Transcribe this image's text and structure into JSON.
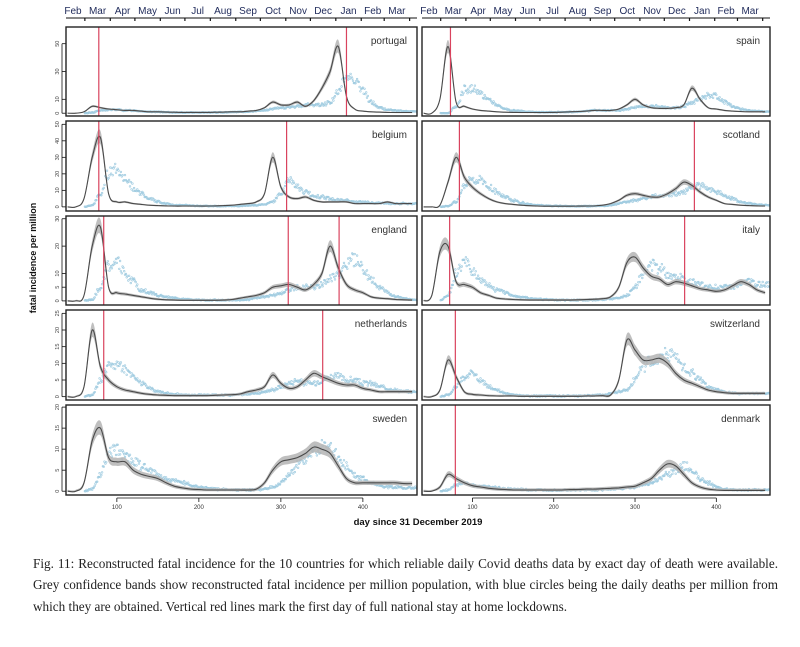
{
  "chart_data": {
    "type": "line",
    "xlabel": "day since 31 December 2019",
    "ylabel": "fatal incidence per million",
    "xlim": [
      38,
      466
    ],
    "x_ticks": [
      100,
      200,
      300,
      400
    ],
    "top_axis_months": [
      "Feb",
      "Mar",
      "Apr",
      "May",
      "Jun",
      "Jul",
      "Aug",
      "Sep",
      "Oct",
      "Nov",
      "Dec",
      "Jan",
      "Feb",
      "Mar"
    ],
    "colors": {
      "band": "#b4b4b4",
      "line": "#4a4a4a",
      "points": "#9fcbe0",
      "lockdown": "#d9435e"
    },
    "x": [
      40,
      50,
      60,
      70,
      80,
      90,
      100,
      110,
      120,
      130,
      140,
      150,
      160,
      170,
      180,
      190,
      200,
      210,
      220,
      230,
      240,
      250,
      260,
      270,
      280,
      290,
      300,
      310,
      320,
      330,
      340,
      350,
      360,
      370,
      380,
      390,
      400,
      410,
      420,
      430,
      440,
      450,
      460
    ],
    "rows": [
      {
        "ylim": [
          -2,
          62
        ],
        "yticks": [
          0,
          10,
          30,
          50
        ]
      },
      {
        "ylim": [
          -2.5,
          52
        ],
        "yticks": [
          0,
          10,
          20,
          30,
          40,
          50
        ]
      },
      {
        "ylim": [
          -1.5,
          31
        ],
        "yticks": [
          0,
          5,
          10,
          20,
          30
        ]
      },
      {
        "ylim": [
          -1,
          26
        ],
        "yticks": [
          0,
          5,
          10,
          15,
          20,
          25
        ]
      },
      {
        "ylim": [
          -0.9,
          20.5
        ],
        "yticks": [
          0,
          5,
          10,
          15,
          20
        ]
      }
    ],
    "panels": [
      {
        "country": "portugal",
        "row": 0,
        "col": 0,
        "lockdown_days": [
          78,
          380
        ],
        "reconstructed": [
          0,
          0,
          1,
          5,
          4,
          3,
          2.5,
          2,
          2,
          1.5,
          1,
          1,
          0.8,
          0.7,
          0.6,
          0.6,
          0.6,
          0.6,
          0.7,
          0.8,
          1,
          1,
          1.5,
          2,
          4,
          8,
          6,
          6,
          8,
          5,
          9,
          18,
          30,
          48,
          12,
          3,
          1.5,
          1,
          0.8,
          0.6,
          0.5,
          0.5,
          0.5
        ],
        "daily_deaths": [
          null,
          null,
          0,
          0.5,
          2,
          2.5,
          2.5,
          2,
          2,
          1.5,
          1,
          1,
          0.7,
          0.5,
          0.5,
          0.5,
          0.5,
          0.5,
          0.5,
          0.6,
          0.8,
          1,
          1,
          1.5,
          2,
          3,
          4,
          4,
          5,
          6,
          6,
          6,
          8,
          15,
          27,
          25,
          16,
          8,
          4,
          2.5,
          2,
          1.5,
          1.2
        ]
      },
      {
        "country": "spain",
        "row": 0,
        "col": 1,
        "lockdown_days": [
          73
        ],
        "reconstructed": [
          0,
          0,
          10,
          48,
          8,
          5,
          3,
          2,
          1.5,
          1,
          0.7,
          0.6,
          0.5,
          0.5,
          0.5,
          0.5,
          0.6,
          0.7,
          1,
          1.2,
          1.5,
          2,
          2,
          2,
          3,
          6,
          10,
          6,
          4,
          3.5,
          3.5,
          4,
          6,
          18,
          10,
          4,
          3,
          2,
          1.5,
          1.2,
          1,
          1,
          1
        ],
        "daily_deaths": [
          null,
          null,
          0,
          0,
          5,
          17,
          18,
          14,
          10,
          6,
          3,
          2,
          1.5,
          1,
          0.8,
          0.7,
          0.7,
          0.8,
          1,
          1,
          1.5,
          2,
          2,
          2,
          2,
          3,
          4,
          5,
          5,
          5,
          4,
          4,
          5,
          8,
          10,
          13,
          12,
          8,
          5,
          3,
          2,
          1.5,
          1.2
        ]
      },
      {
        "country": "belgium",
        "row": 1,
        "col": 0,
        "lockdown_days": [
          78,
          307
        ],
        "reconstructed": [
          0,
          0,
          5,
          30,
          42,
          8,
          3,
          3,
          2,
          1.5,
          1,
          0.8,
          0.6,
          0.5,
          0.5,
          0.5,
          0.5,
          0.5,
          0.6,
          0.8,
          1,
          1.5,
          2,
          3,
          8,
          30,
          12,
          6,
          5,
          6,
          4,
          3,
          3,
          3,
          3,
          2,
          2,
          2,
          2,
          3,
          2,
          2,
          2
        ],
        "daily_deaths": [
          null,
          null,
          0,
          1,
          8,
          20,
          24,
          18,
          12,
          8,
          5,
          3,
          2,
          1,
          1,
          0.8,
          0.6,
          0.5,
          0.5,
          0.5,
          0.5,
          0.6,
          0.8,
          1,
          1.5,
          3,
          8,
          16,
          12,
          9,
          7,
          6,
          5,
          4,
          4,
          3,
          3,
          2.5,
          2.5,
          2,
          2,
          2,
          2
        ]
      },
      {
        "country": "scotland",
        "row": 1,
        "col": 1,
        "lockdown_days": [
          84,
          373
        ],
        "reconstructed": [
          0,
          0,
          1,
          15,
          30,
          18,
          12,
          8,
          5,
          3,
          2,
          1.5,
          1,
          0.7,
          0.5,
          0.4,
          0.4,
          0.4,
          0.4,
          0.5,
          0.5,
          0.6,
          1,
          2,
          4,
          7,
          8,
          7,
          6,
          6,
          8,
          11,
          15,
          13,
          9,
          6,
          4,
          2,
          1.5,
          1,
          0.8,
          0.6,
          0.5
        ],
        "daily_deaths": [
          null,
          null,
          0,
          0.5,
          3,
          12,
          17,
          16,
          12,
          9,
          6,
          4,
          2.5,
          1.5,
          1,
          0.7,
          0.6,
          0.5,
          0.4,
          0.4,
          0.4,
          0.5,
          0.6,
          1,
          2,
          3,
          4,
          5,
          6,
          7,
          7,
          8,
          9,
          12,
          13,
          11,
          9,
          7,
          5,
          3,
          2,
          1.5,
          1
        ]
      },
      {
        "country": "england",
        "row": 2,
        "col": 0,
        "lockdown_days": [
          84,
          309,
          371
        ],
        "reconstructed": [
          0,
          0,
          2,
          20,
          27,
          5,
          3,
          2.5,
          2,
          1.5,
          1,
          0.6,
          0.4,
          0.3,
          0.2,
          0.2,
          0.2,
          0.2,
          0.2,
          0.3,
          0.5,
          1,
          1.5,
          2,
          3,
          5,
          5.5,
          6,
          5,
          4,
          6,
          10,
          20,
          12,
          6,
          4,
          3,
          1.5,
          1,
          0.8,
          0.5,
          0.4,
          0.3
        ],
        "daily_deaths": [
          null,
          null,
          0,
          0.5,
          5,
          13,
          14,
          10,
          7,
          4,
          3,
          2,
          1.5,
          1,
          0.6,
          0.5,
          0.4,
          0.3,
          0.3,
          0.3,
          0.3,
          0.4,
          0.5,
          1,
          1.5,
          2,
          3,
          4,
          5,
          5,
          5,
          6,
          8,
          10,
          14,
          15,
          12,
          8,
          5,
          3,
          1.5,
          1,
          0.5
        ]
      },
      {
        "country": "italy",
        "row": 2,
        "col": 1,
        "lockdown_days": [
          72,
          361
        ],
        "reconstructed": [
          0,
          2,
          18,
          20,
          7,
          6,
          5,
          3,
          2,
          1,
          0.7,
          0.5,
          0.4,
          0.3,
          0.3,
          0.3,
          0.3,
          0.3,
          0.3,
          0.4,
          0.5,
          0.6,
          0.8,
          1.5,
          5,
          14,
          16,
          12,
          9,
          8,
          6,
          7,
          6.5,
          5.5,
          4.5,
          4,
          3.5,
          4,
          5.5,
          7,
          6,
          4,
          3
        ],
        "daily_deaths": [
          null,
          null,
          0,
          2,
          10,
          14,
          11,
          8,
          6,
          4,
          3,
          2,
          1.5,
          1,
          0.7,
          0.5,
          0.4,
          0.3,
          0.3,
          0.3,
          0.3,
          0.4,
          0.5,
          0.8,
          1,
          2,
          5,
          10,
          13,
          12,
          10,
          9,
          8,
          7,
          6,
          5,
          5,
          5,
          5,
          6,
          7,
          6,
          6
        ]
      },
      {
        "country": "netherlands",
        "row": 3,
        "col": 0,
        "lockdown_days": [
          84,
          351
        ],
        "reconstructed": [
          0,
          0,
          3,
          20,
          9,
          5,
          3,
          2,
          1.5,
          1,
          0.7,
          0.5,
          0.4,
          0.3,
          0.3,
          0.3,
          0.3,
          0.3,
          0.4,
          0.5,
          0.6,
          0.8,
          1.5,
          2,
          3,
          6.5,
          4,
          2.5,
          3,
          5,
          7,
          6,
          5,
          4,
          3.5,
          3.5,
          2.5,
          2,
          1.5,
          1.5,
          1.5,
          1.5,
          1.5
        ],
        "daily_deaths": [
          null,
          null,
          0,
          0.5,
          5,
          9,
          10,
          8,
          6,
          4,
          2.5,
          1.5,
          1,
          0.8,
          0.6,
          0.5,
          0.5,
          0.5,
          0.5,
          0.5,
          0.5,
          0.6,
          0.8,
          1,
          1.5,
          2,
          3,
          4,
          5,
          4,
          4,
          5,
          6,
          6,
          5,
          5,
          4,
          4,
          3,
          2.5,
          2,
          1.5,
          1.5
        ]
      },
      {
        "country": "switzerland",
        "row": 3,
        "col": 1,
        "lockdown_days": [
          79
        ],
        "reconstructed": [
          0,
          0,
          2,
          11,
          6,
          1.5,
          0.7,
          0.5,
          0.3,
          0.2,
          0.2,
          0.2,
          0.1,
          0.1,
          0.1,
          0.1,
          0.1,
          0.1,
          0.1,
          0.1,
          0.2,
          0.2,
          0.3,
          0.5,
          5,
          17,
          14,
          11,
          11,
          11.5,
          10,
          7,
          5,
          4,
          3,
          2,
          1.5,
          1.2,
          1,
          1,
          1,
          1,
          1
        ],
        "daily_deaths": [
          null,
          null,
          0,
          0.5,
          3,
          6,
          7,
          5,
          3,
          2,
          1,
          0.5,
          0.3,
          0.2,
          0.2,
          0.2,
          0.2,
          0.2,
          0.2,
          0.2,
          0.3,
          0.4,
          0.5,
          1,
          1.5,
          2,
          5,
          9,
          11,
          12,
          13,
          12,
          9,
          7,
          5,
          3,
          2,
          1.5,
          1,
          1,
          1,
          1,
          1
        ]
      },
      {
        "country": "sweden",
        "row": 4,
        "col": 0,
        "lockdown_days": [],
        "reconstructed": [
          0,
          0,
          2,
          12,
          15,
          8,
          7,
          7,
          5,
          4,
          3.5,
          3,
          2,
          1.2,
          0.8,
          0.5,
          0.4,
          0.3,
          0.3,
          0.3,
          0.3,
          0.3,
          0.3,
          0.5,
          2,
          5,
          7,
          7.5,
          8,
          9,
          10.5,
          10,
          9,
          6,
          3,
          2,
          2,
          2,
          2,
          2,
          2,
          1.8,
          1.8
        ],
        "daily_deaths": [
          null,
          null,
          0,
          0.5,
          4,
          9,
          10,
          8,
          7,
          6,
          5,
          4,
          3,
          2.5,
          2,
          1.5,
          1,
          0.8,
          0.5,
          0.4,
          0.3,
          0.3,
          0.3,
          0.3,
          0.5,
          1,
          2,
          4,
          6,
          8,
          9,
          11,
          10,
          8,
          6,
          4,
          3,
          2,
          1.5,
          1,
          1,
          0.8,
          0.8
        ]
      },
      {
        "country": "denmark",
        "row": 4,
        "col": 1,
        "lockdown_days": [
          79
        ],
        "reconstructed": [
          0,
          0,
          1,
          4,
          3,
          2,
          1.3,
          1,
          0.7,
          0.5,
          0.4,
          0.3,
          0.3,
          0.3,
          0.3,
          0.3,
          0.3,
          0.3,
          0.4,
          0.4,
          0.5,
          0.5,
          0.6,
          0.7,
          0.8,
          1,
          1.2,
          2,
          3,
          5,
          6.5,
          6,
          4,
          2,
          1,
          0.5,
          0.3,
          0.2,
          0.2,
          0.2,
          0.2,
          0.2,
          0.2
        ],
        "daily_deaths": [
          null,
          null,
          0,
          0.3,
          1.5,
          2,
          1.5,
          1.2,
          1,
          0.8,
          0.6,
          0.5,
          0.4,
          0.3,
          0.3,
          0.3,
          0.3,
          0.3,
          0.3,
          0.3,
          0.3,
          0.3,
          0.4,
          0.5,
          0.6,
          0.8,
          1,
          1.5,
          2,
          3,
          4,
          5,
          6,
          5,
          3,
          2,
          1,
          0.5,
          0.4,
          0.3,
          0.3,
          0.3,
          0.3
        ]
      }
    ]
  },
  "caption": {
    "text": "Fig. 11: Reconstructed fatal incidence for the 10 countries for which reliable daily Covid deaths data by exact day of death were available. Grey confidence bands show reconstructed fatal incidence per million population, with blue circles being the daily deaths per million from which they are obtained. Vertical red lines mark the first day of full national stay at home lockdowns."
  }
}
